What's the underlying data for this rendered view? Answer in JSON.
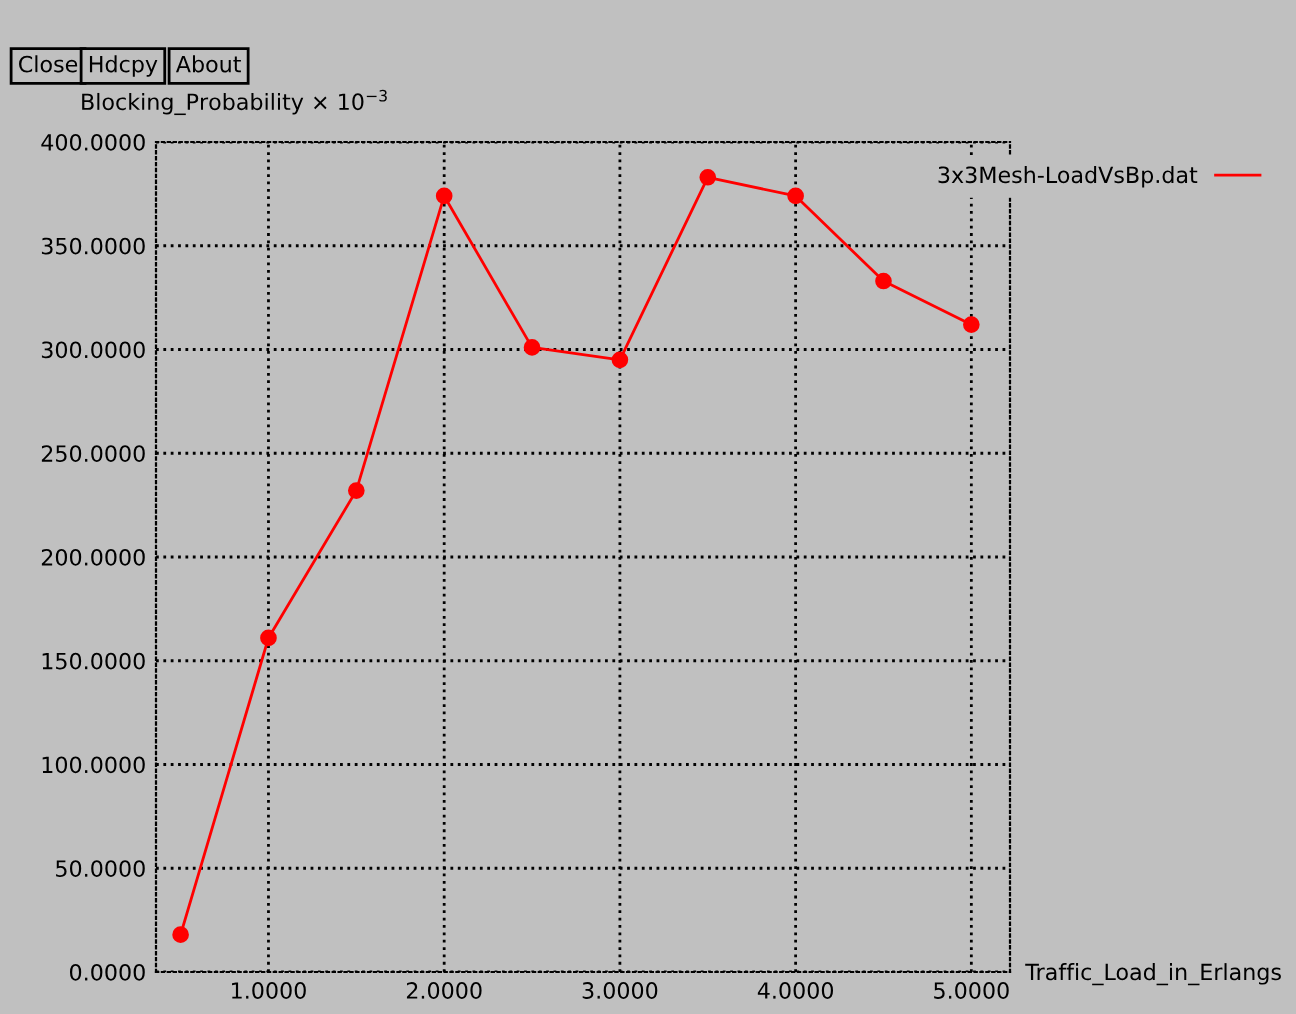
{
  "chart_data": {
    "type": "line",
    "xlabel": "Traffic_Load_in_Erlangs",
    "ylabel": "Blocking_Probability × 10$^{−3}$",
    "annotations": [
      "Close",
      "Hdcpy",
      "About"
    ],
    "x": [
      0.5,
      1.0,
      1.5,
      2.0,
      2.5,
      3.0,
      3.5,
      4.0,
      4.5,
      5.0
    ],
    "series": [
      {
        "name": "3x3Mesh-LoadVsBp.dat",
        "color": "#ff0000",
        "values": [
          18,
          161,
          232,
          374,
          301,
          295,
          383,
          374,
          333,
          312
        ]
      }
    ],
    "xlim": [
      0.36,
      5.22
    ],
    "ylim": [
      0,
      400
    ],
    "xticks": [
      {
        "value": 1,
        "label": "1.0000"
      },
      {
        "value": 2,
        "label": "2.0000"
      },
      {
        "value": 3,
        "label": "3.0000"
      },
      {
        "value": 4,
        "label": "4.0000"
      },
      {
        "value": 5,
        "label": "5.0000"
      }
    ],
    "yticks": [
      {
        "value": 0,
        "label": "0.0000"
      },
      {
        "value": 50,
        "label": "50.0000"
      },
      {
        "value": 100,
        "label": "100.0000"
      },
      {
        "value": 150,
        "label": "150.0000"
      },
      {
        "value": 200,
        "label": "200.0000"
      },
      {
        "value": 250,
        "label": "250.0000"
      },
      {
        "value": 300,
        "label": "300.0000"
      },
      {
        "value": 350,
        "label": "350.0000"
      },
      {
        "value": 400,
        "label": "400.0000"
      }
    ],
    "grid": true,
    "legend": "top right",
    "marker": "circle",
    "line_style": "solid"
  }
}
